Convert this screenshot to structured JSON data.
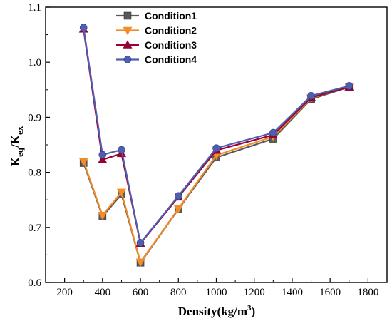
{
  "chart_data": {
    "type": "line",
    "x": [
      300,
      400,
      500,
      600,
      800,
      1000,
      1300,
      1500,
      1700
    ],
    "series": [
      {
        "name": "Condition1",
        "marker": "square",
        "color": "#595959",
        "values": [
          0.817,
          0.72,
          0.76,
          0.636,
          0.733,
          0.827,
          0.861,
          0.933,
          0.955
        ]
      },
      {
        "name": "Condition2",
        "marker": "triangle-down",
        "color": "#F28C28",
        "values": [
          0.82,
          0.722,
          0.764,
          0.637,
          0.734,
          0.831,
          0.865,
          0.935,
          0.956
        ]
      },
      {
        "name": "Condition3",
        "marker": "triangle-up",
        "color": "#990033",
        "values": [
          1.06,
          0.823,
          0.834,
          0.671,
          0.755,
          0.84,
          0.868,
          0.936,
          0.955
        ]
      },
      {
        "name": "Condition4",
        "marker": "circle",
        "color": "#4E5FB0",
        "values": [
          1.063,
          0.832,
          0.841,
          0.672,
          0.757,
          0.844,
          0.872,
          0.939,
          0.957
        ]
      }
    ],
    "xlim": [
      100,
      1900
    ],
    "ylim": [
      0.6,
      1.1
    ],
    "xticks": [
      200,
      400,
      600,
      800,
      1000,
      1200,
      1400,
      1600,
      1800
    ],
    "yticks": [
      0.6,
      0.7,
      0.8,
      0.9,
      1.0,
      1.1
    ],
    "ytick_labels": [
      "0.6",
      "0.7",
      "0.8",
      "0.9",
      "1.0",
      "1.1"
    ],
    "xlabel": "Density(kg/m",
    "xlabel_sup": "3",
    "xlabel_end": ")",
    "ylabel_main": "K",
    "ylabel_sub1": "eq",
    "ylabel_sep": "/K",
    "ylabel_sub2": "ex",
    "grid": false,
    "legend_position": "top-center"
  }
}
